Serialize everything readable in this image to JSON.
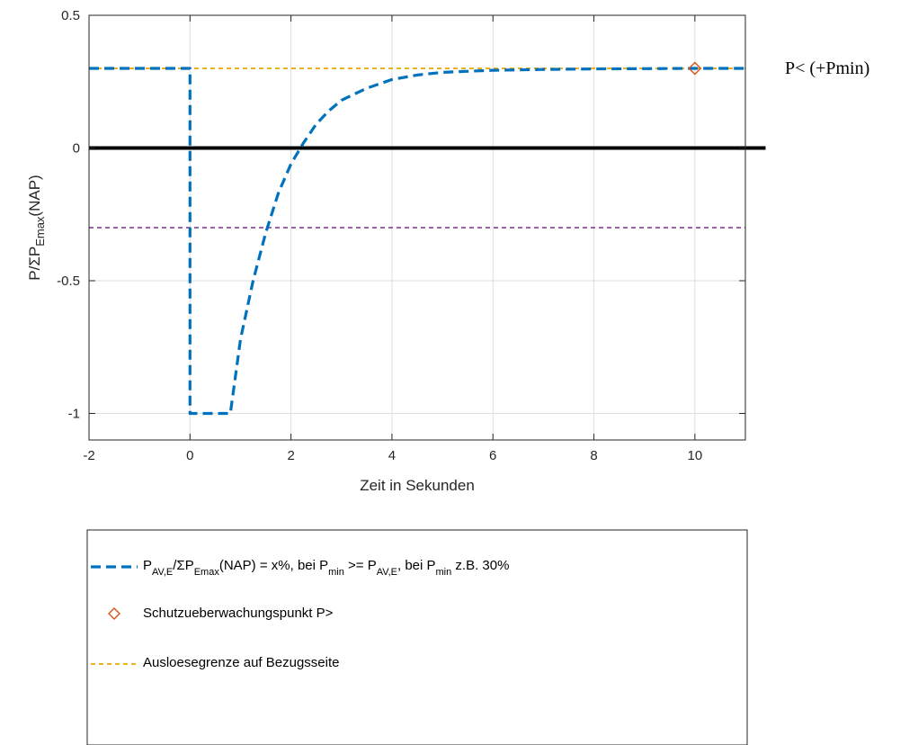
{
  "chart_data": {
    "type": "line",
    "xlabel": "Zeit in Sekunden",
    "ylabel": {
      "main": "P/ΣP",
      "sub": "Emax",
      "suffix": "(NAP)"
    },
    "xlim": [
      -2,
      11
    ],
    "ylim": [
      -1.1,
      0.5
    ],
    "xticks": [
      -2,
      0,
      2,
      4,
      6,
      8,
      10
    ],
    "xtick_labels": [
      "-2",
      "0",
      "2",
      "4",
      "6",
      "8",
      "10"
    ],
    "yticks": [
      -1,
      -0.5,
      0,
      0.5
    ],
    "ytick_labels": [
      "-1",
      "-0.5",
      "0",
      "0.5"
    ],
    "grid": true,
    "series": [
      {
        "name": "P_AV,E/ΣP_Emax(NAP)",
        "style": "dashed",
        "color": "#0072BD",
        "x": [
          -2,
          0,
          0,
          0.8,
          1.0,
          1.25,
          1.5,
          1.75,
          2.0,
          2.25,
          2.5,
          2.75,
          3.0,
          3.5,
          4.0,
          4.5,
          5.0,
          6.0,
          7.0,
          8.0,
          9.0,
          10.0,
          11.0
        ],
        "y": [
          0.3,
          0.3,
          -1.0,
          -1.0,
          -0.72,
          -0.5,
          -0.32,
          -0.17,
          -0.06,
          0.02,
          0.09,
          0.14,
          0.18,
          0.225,
          0.258,
          0.275,
          0.285,
          0.293,
          0.296,
          0.298,
          0.299,
          0.3,
          0.3
        ]
      },
      {
        "name": "Ausloesegrenze auf Bezugsseite",
        "style": "dashed",
        "color": "#EDB120",
        "x": [
          -2,
          11
        ],
        "y": [
          0.3,
          0.3
        ]
      },
      {
        "name": "",
        "style": "dashed",
        "color": "#7E2F8E",
        "x": [
          -2,
          11
        ],
        "y": [
          -0.3,
          -0.3
        ]
      },
      {
        "name": "",
        "style": "solid",
        "color": "#000000",
        "x": [
          -2,
          11.4
        ],
        "y": [
          0,
          0
        ]
      }
    ],
    "markers": [
      {
        "name": "Schutzueberwachungspunkt P>",
        "shape": "diamond",
        "color": "#D95319",
        "x": 10,
        "y": 0.3
      }
    ],
    "annotations": [
      {
        "text": "P< (+Pmin)"
      }
    ],
    "legend": {
      "placement": "below",
      "entries": [
        {
          "kind": "line",
          "color": "#0072BD",
          "parts": [
            {
              "t": "P",
              "sub": false
            },
            {
              "t": "AV,E",
              "sub": true
            },
            {
              "t": "/ΣP",
              "sub": false
            },
            {
              "t": "Emax",
              "sub": true
            },
            {
              "t": "(NAP) = x%, bei P",
              "sub": false
            },
            {
              "t": "min",
              "sub": true
            },
            {
              "t": " >= P",
              "sub": false
            },
            {
              "t": "AV,E",
              "sub": true
            },
            {
              "t": ", bei P",
              "sub": false
            },
            {
              "t": "min",
              "sub": true
            },
            {
              "t": " z.B. 30%",
              "sub": false
            }
          ]
        },
        {
          "kind": "marker",
          "color": "#D95319",
          "parts": [
            {
              "t": "Schutzueberwachungspunkt P>",
              "sub": false
            }
          ]
        },
        {
          "kind": "line-thin",
          "color": "#EDB120",
          "parts": [
            {
              "t": "Ausloesegrenze auf Bezugsseite",
              "sub": false
            }
          ]
        }
      ]
    }
  }
}
